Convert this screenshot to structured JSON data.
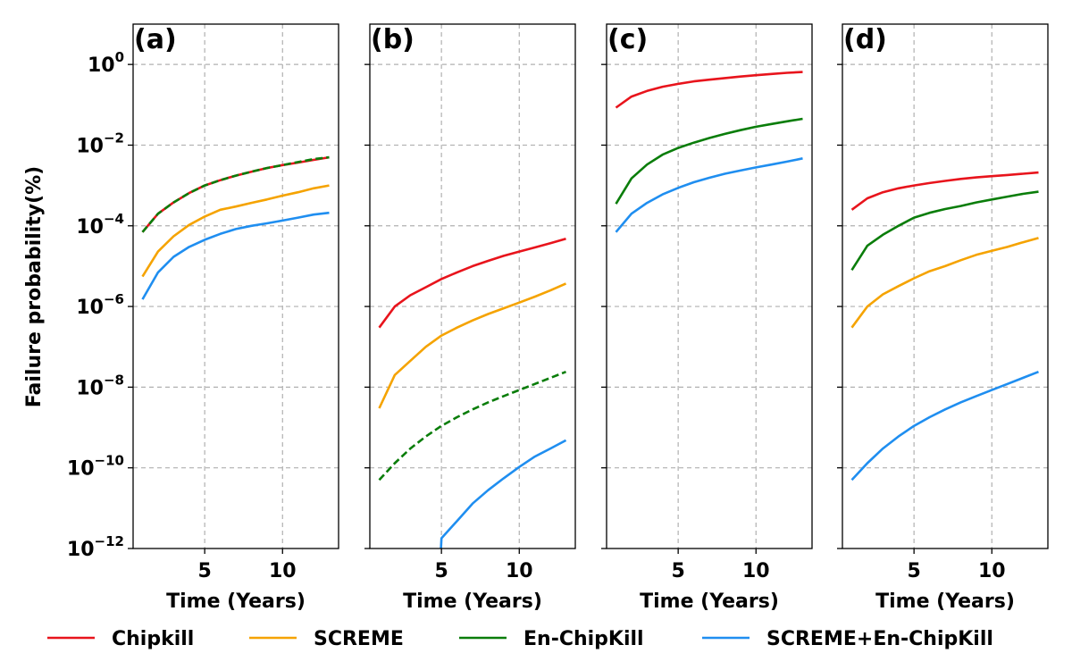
{
  "chart_data": {
    "type": "line",
    "layout": "1x4 panels sharing y-axis",
    "ylabel": "Failure probability(%)",
    "xlabel": "Time (Years)",
    "yscale": "log",
    "ylim": [
      1e-12,
      10
    ],
    "xlim": [
      0.4,
      13.6
    ],
    "xticks": [
      5,
      10
    ],
    "ytick_labels": [
      {
        "base": "10",
        "exp": "0",
        "value": 1
      },
      {
        "base": "10",
        "exp": "−2",
        "value": 0.01
      },
      {
        "base": "10",
        "exp": "−4",
        "value": 0.0001
      },
      {
        "base": "10",
        "exp": "−6",
        "value": 1e-06
      },
      {
        "base": "10",
        "exp": "−8",
        "value": 1e-08
      },
      {
        "base": "10",
        "exp": "−10",
        "value": 1e-10
      },
      {
        "base": "10",
        "exp": "−12",
        "value": 1e-12
      }
    ],
    "grid": true,
    "legend_position": "bottom",
    "colors": {
      "Chipkill": "#e8141c",
      "SCREME": "#f5a300",
      "En-ChipKill": "#0a7d0a",
      "SCREME+En-ChipKill": "#1f8ef0"
    },
    "legend": [
      {
        "name": "Chipkill",
        "color": "#e8141c"
      },
      {
        "name": "SCREME",
        "color": "#f5a300"
      },
      {
        "name": "En-ChipKill",
        "color": "#0a7d0a"
      },
      {
        "name": "SCREME+En-ChipKill",
        "color": "#1f8ef0"
      }
    ],
    "x": [
      1,
      2,
      3,
      4,
      5,
      6,
      7,
      8,
      9,
      10,
      11,
      12,
      13
    ],
    "panels": [
      {
        "tag": "(a)",
        "series": [
          {
            "name": "Chipkill",
            "color": "#e8141c",
            "dash": false,
            "values": [
              7e-05,
              0.0002,
              0.00038,
              0.00065,
              0.001,
              0.00135,
              0.00175,
              0.0022,
              0.0027,
              0.0032,
              0.0037,
              0.0043,
              0.005
            ]
          },
          {
            "name": "SCREME",
            "color": "#f5a300",
            "dash": false,
            "values": [
              5.5e-06,
              2.3e-05,
              5.5e-05,
              0.000105,
              0.00017,
              0.00025,
              0.0003,
              0.00037,
              0.00045,
              0.00056,
              0.00068,
              0.00085,
              0.001
            ]
          },
          {
            "name": "En-ChipKill",
            "color": "#0a7d0a",
            "dash": true,
            "values": [
              7e-05,
              0.0002,
              0.00038,
              0.00065,
              0.001,
              0.00135,
              0.00175,
              0.0022,
              0.0027,
              0.0032,
              0.0038,
              0.0045,
              0.005
            ]
          },
          {
            "name": "SCREME+En-ChipKill",
            "color": "#1f8ef0",
            "dash": false,
            "values": [
              1.5e-06,
              7e-06,
              1.7e-05,
              3e-05,
              4.5e-05,
              6.3e-05,
              8.3e-05,
              0.0001,
              0.000115,
              0.000135,
              0.00016,
              0.00019,
              0.00021
            ]
          }
        ]
      },
      {
        "tag": "(b)",
        "series": [
          {
            "name": "Chipkill",
            "color": "#e8141c",
            "dash": false,
            "values": [
              3e-07,
              1e-06,
              1.9e-06,
              3e-06,
              4.8e-06,
              7e-06,
              1e-05,
              1.35e-05,
              1.8e-05,
              2.3e-05,
              2.9e-05,
              3.7e-05,
              4.8e-05
            ]
          },
          {
            "name": "SCREME",
            "color": "#f5a300",
            "dash": false,
            "values": [
              3e-09,
              2e-08,
              4.5e-08,
              1e-07,
              1.9e-07,
              3e-07,
              4.5e-07,
              6.5e-07,
              9e-07,
              1.25e-06,
              1.75e-06,
              2.5e-06,
              3.7e-06
            ]
          },
          {
            "name": "En-ChipKill",
            "color": "#0a7d0a",
            "dash": true,
            "values": [
              5e-11,
              1.3e-10,
              3e-10,
              6e-10,
              1.1e-09,
              1.8e-09,
              2.8e-09,
              4.2e-09,
              6e-09,
              8.5e-09,
              1.2e-08,
              1.7e-08,
              2.4e-08
            ]
          },
          {
            "name": "SCREME+En-ChipKill",
            "color": "#1f8ef0",
            "dash": false,
            "values": [
              null,
              null,
              null,
              null,
              1.8e-12,
              4.8e-12,
              1.3e-11,
              2.8e-11,
              5.5e-11,
              1.05e-10,
              1.9e-10,
              3e-10,
              4.8e-10
            ]
          }
        ]
      },
      {
        "tag": "(c)",
        "series": [
          {
            "name": "Chipkill",
            "color": "#e8141c",
            "dash": false,
            "values": [
              0.085,
              0.16,
              0.22,
              0.28,
              0.33,
              0.38,
              0.42,
              0.46,
              0.5,
              0.54,
              0.58,
              0.62,
              0.65
            ]
          },
          {
            "name": "En-ChipKill",
            "color": "#0a7d0a",
            "dash": false,
            "values": [
              0.00035,
              0.0015,
              0.0033,
              0.0058,
              0.0085,
              0.0115,
              0.015,
              0.019,
              0.0235,
              0.0285,
              0.0335,
              0.039,
              0.045
            ]
          },
          {
            "name": "SCREME+En-ChipKill",
            "color": "#1f8ef0",
            "dash": false,
            "values": [
              7e-05,
              0.0002,
              0.00037,
              0.0006,
              0.00087,
              0.0012,
              0.00155,
              0.00195,
              0.00235,
              0.0028,
              0.0033,
              0.0039,
              0.0047
            ]
          }
        ]
      },
      {
        "tag": "(d)",
        "series": [
          {
            "name": "Chipkill",
            "color": "#e8141c",
            "dash": false,
            "values": [
              0.00025,
              0.00048,
              0.00068,
              0.00085,
              0.001,
              0.00115,
              0.0013,
              0.00145,
              0.00158,
              0.0017,
              0.00182,
              0.00195,
              0.0021
            ]
          },
          {
            "name": "SCREME",
            "color": "#f5a300",
            "dash": false,
            "values": [
              3e-07,
              1e-06,
              2e-06,
              3.2e-06,
              5e-06,
              7.5e-06,
              1e-05,
              1.4e-05,
              1.9e-05,
              2.4e-05,
              3e-05,
              3.9e-05,
              5e-05
            ]
          },
          {
            "name": "En-ChipKill",
            "color": "#0a7d0a",
            "dash": false,
            "values": [
              8e-06,
              3.2e-05,
              6e-05,
              0.0001,
              0.00016,
              0.00021,
              0.00026,
              0.00031,
              0.00038,
              0.00045,
              0.00053,
              0.00062,
              0.0007
            ]
          },
          {
            "name": "SCREME+En-ChipKill",
            "color": "#1f8ef0",
            "dash": false,
            "values": [
              5e-11,
              1.3e-10,
              3e-10,
              6e-10,
              1.1e-09,
              1.8e-09,
              2.8e-09,
              4.2e-09,
              6e-09,
              8.5e-09,
              1.2e-08,
              1.7e-08,
              2.4e-08
            ]
          }
        ]
      }
    ]
  }
}
